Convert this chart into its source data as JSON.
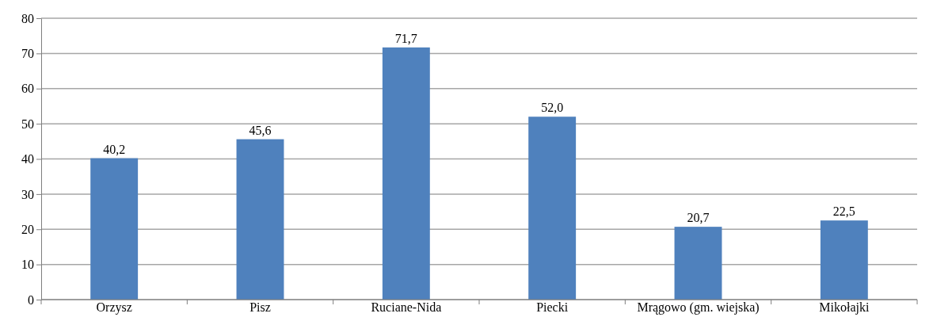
{
  "chart_data": {
    "type": "bar",
    "categories": [
      "Orzysz",
      "Pisz",
      "Ruciane-Nida",
      "Piecki",
      "Mrągowo (gm. wiejska)",
      "Mikołajki"
    ],
    "values": [
      40.2,
      45.6,
      71.7,
      52.0,
      20.7,
      22.5
    ],
    "value_labels": [
      "40,2",
      "45,6",
      "71,7",
      "52,0",
      "20,7",
      "22,5"
    ],
    "color": "#4f81bd",
    "ylim": [
      0,
      80
    ],
    "yticks": [
      0,
      10,
      20,
      30,
      40,
      50,
      60,
      70,
      80
    ],
    "grid": "y"
  }
}
